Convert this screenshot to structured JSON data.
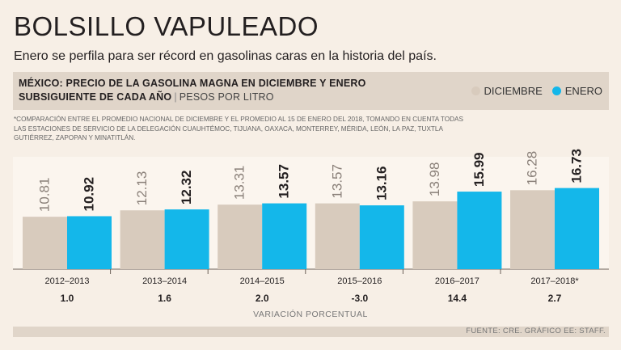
{
  "header": {
    "title": "BOLSILLO VAPULEADO",
    "subtitle": "Enero se perfila para ser récord en gasolinas caras en la historia del país."
  },
  "band": {
    "line1": "MÉXICO: PRECIO DE LA GASOLINA MAGNA EN DICIEMBRE Y ENERO",
    "line2": "SUBSIGUIENTE DE CADA AÑO",
    "unit": "PESOS POR LITRO"
  },
  "note": "*Comparación entre el promedio nacional de diciembre y el promedio al 15 de enero del 2018, tomando en cuenta todas las estaciones de servicio de la delegación Cuauhtémoc, Tijuana, Oaxaca, Monterrey, Mérida, León, La Paz, Tuxtla Gutiérrez, Zapopan y Minatitlán.",
  "colors": {
    "diciembre": "#d8cbbd",
    "enero": "#14b7ea",
    "background": "#f7efe6"
  },
  "chart_data": {
    "type": "bar",
    "title": "MÉXICO: PRECIO DE LA GASOLINA MAGNA EN DICIEMBRE Y ENERO SUBSIGUIENTE DE CADA AÑO",
    "ylabel": "PESOS POR LITRO",
    "categories": [
      "2012–2013",
      "2013–2014",
      "2014–2015",
      "2015–2016",
      "2016–2017",
      "2017–2018*"
    ],
    "series": [
      {
        "name": "DICIEMBRE",
        "values": [
          10.81,
          12.13,
          13.31,
          13.57,
          13.98,
          16.28
        ],
        "labels": [
          "10.81",
          "12.13",
          "13.31",
          "13.57",
          "13.98",
          "16.28"
        ]
      },
      {
        "name": "ENERO",
        "values": [
          10.92,
          12.32,
          13.57,
          13.16,
          15.99,
          16.73
        ],
        "labels": [
          "10.92",
          "12.32",
          "13.57",
          "13.16",
          "15.99",
          "16.73"
        ]
      }
    ],
    "variation": [
      "1.0",
      "1.6",
      "2.0",
      "-3.0",
      "14.4",
      "2.7"
    ],
    "variation_label": "VARIACIÓN PORCENTUAL",
    "legend": "top-right",
    "grid": false,
    "ylim": [
      0,
      27
    ]
  },
  "footer": {
    "source": "FUENTE: CRE.  GRÁFICO EE: STAFF."
  }
}
